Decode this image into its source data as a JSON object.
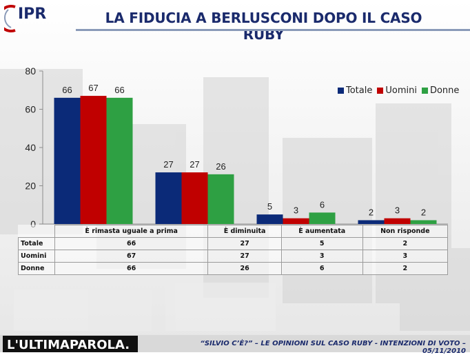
{
  "header": {
    "logo_text": "IPR",
    "title": "LA FIDUCIA A BERLUSCONI DOPO IL CASO RUBY"
  },
  "colors": {
    "totale": "#0b2a78",
    "uomini": "#c00000",
    "donne": "#2ea043",
    "title": "#1a2a6c"
  },
  "chart_data": {
    "type": "bar",
    "categories": [
      "È rimasta uguale a prima",
      "È diminuita",
      "È aumentata",
      "Non risponde"
    ],
    "series": [
      {
        "name": "Totale",
        "values": [
          66,
          27,
          5,
          2
        ]
      },
      {
        "name": "Uomini",
        "values": [
          67,
          27,
          3,
          3
        ]
      },
      {
        "name": "Donne",
        "values": [
          66,
          26,
          6,
          2
        ]
      }
    ],
    "ylim": [
      0,
      80
    ],
    "yticks": [
      0,
      20,
      40,
      60,
      80
    ],
    "legend_position": "top-right",
    "grid": false,
    "data_table": true
  },
  "table": {
    "columns": [
      "È rimasta uguale a prima",
      "È diminuita",
      "È aumentata",
      "Non risponde"
    ],
    "rows": [
      {
        "label": "Totale",
        "values": [
          "66",
          "27",
          "5",
          "2"
        ]
      },
      {
        "label": "Uomini",
        "values": [
          "67",
          "27",
          "3",
          "3"
        ]
      },
      {
        "label": "Donne",
        "values": [
          "66",
          "26",
          "6",
          "2"
        ]
      }
    ]
  },
  "footer": {
    "brand": "L'ULTIMAPAROLA.",
    "note": "“SILVIO C’È?” – LE OPINIONI SUL CASO RUBY - INTENZIONI DI VOTO – 05/11/2010"
  }
}
